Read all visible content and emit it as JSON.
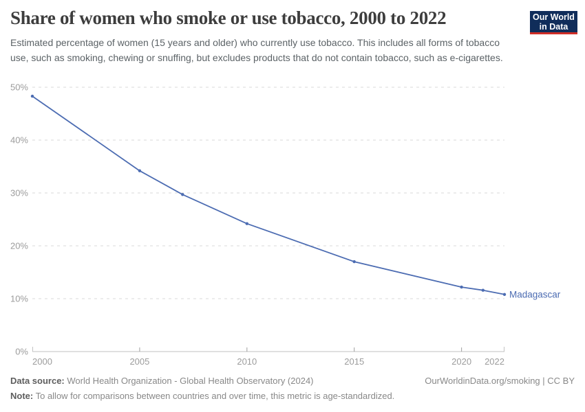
{
  "header": {
    "title": "Share of women who smoke or use tobacco, 2000 to 2022",
    "subtitle": "Estimated percentage of women (15 years and older) who currently use tobacco. This includes all forms of tobacco use, such as smoking, chewing or snuffing, but excludes products that do not contain tobacco, such as e-cigarettes.",
    "logo": {
      "line1": "Our World",
      "line2": "in Data",
      "bg_color": "#102d5a",
      "accent_color": "#cf2e27"
    }
  },
  "chart_data": {
    "type": "line",
    "title": "Share of women who smoke or use tobacco, 2000 to 2022",
    "x": [
      2000,
      2005,
      2007,
      2010,
      2015,
      2020,
      2021,
      2022
    ],
    "series": [
      {
        "name": "Madagascar",
        "color": "#4c6cb2",
        "values": [
          48.3,
          34.2,
          29.7,
          24.2,
          17.0,
          12.2,
          11.6,
          10.8
        ]
      }
    ],
    "end_label": "Madagascar",
    "x_ticks": [
      2000,
      2005,
      2010,
      2015,
      2020,
      2022
    ],
    "y_ticks": [
      0,
      10,
      20,
      30,
      40,
      50
    ],
    "y_tick_suffix": "%",
    "xlim": [
      2000,
      2022
    ],
    "ylim": [
      0,
      50
    ],
    "grid": "dashed-horizontal",
    "legend_position": "end-of-line",
    "grid_color": "#d9d9d9",
    "axis_color": "#c2c2c2",
    "tick_color": "#9e9e9e",
    "tick_label_color": "#9c9c9c"
  },
  "footer": {
    "datasource_label": "Data source:",
    "datasource_text": " World Health Organization - Global Health Observatory (2024)",
    "rights": "OurWorldinData.org/smoking | CC BY",
    "note_label": "Note:",
    "note_text": " To allow for comparisons between countries and over time, this metric is age-standardized."
  }
}
